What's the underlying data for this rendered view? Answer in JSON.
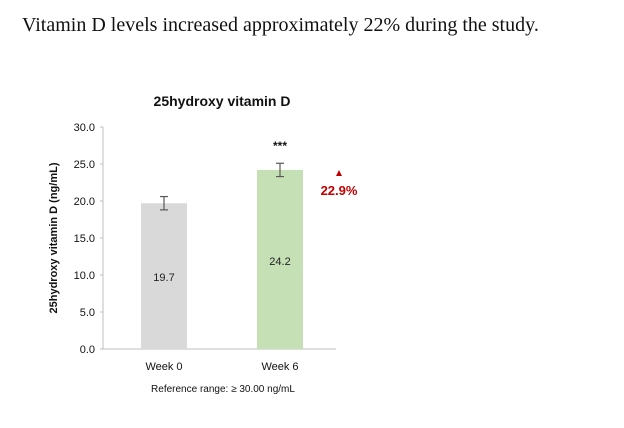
{
  "page": {
    "headline": "Vitamin D levels increased approximately 22% during the study."
  },
  "chart_data": {
    "type": "bar",
    "title": "25hydroxy vitamin D",
    "xlabel": "",
    "ylabel": "25hydroxy vitamin D (ng/mL)",
    "ylim": [
      0,
      30
    ],
    "yticks": [
      "0.0",
      "5.0",
      "10.0",
      "15.0",
      "20.0",
      "25.0",
      "30.0"
    ],
    "categories": [
      "Week 0",
      "Week 6"
    ],
    "values": [
      19.7,
      24.2
    ],
    "value_labels": [
      "19.7",
      "24.2"
    ],
    "error": [
      0.9,
      0.9
    ],
    "colors": [
      "#d9d9d9",
      "#c5e0b4"
    ],
    "significance": "***",
    "change_label": "22.9%",
    "change_color": "#c00000",
    "footnote": "Reference range: ≥ 30.00 ng/mL",
    "grid": false
  }
}
